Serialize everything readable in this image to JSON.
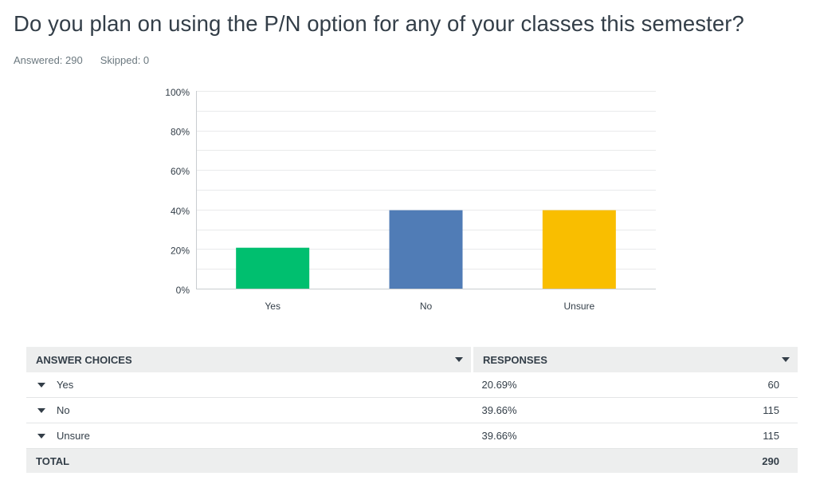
{
  "question": {
    "title": "Do you plan on using the P/N option for any of your classes this semester?",
    "answered_label": "Answered: 290",
    "skipped_label": "Skipped: 0"
  },
  "colors": {
    "yes": "#00bf6f",
    "no": "#507cb6",
    "unsure": "#f9be00",
    "grid": "#e9eaeb",
    "axis": "#c9cdd0"
  },
  "chart_data": {
    "type": "bar",
    "title": "",
    "xlabel": "",
    "ylabel": "",
    "categories": [
      "Yes",
      "No",
      "Unsure"
    ],
    "values": [
      20.69,
      39.66,
      39.66
    ],
    "ylim": [
      0,
      100
    ],
    "yticks": [
      "0%",
      "20%",
      "40%",
      "60%",
      "80%",
      "100%"
    ],
    "grid": true,
    "legend": "none"
  },
  "table": {
    "headers": {
      "answer_choices": "ANSWER CHOICES",
      "responses": "RESPONSES"
    },
    "rows": [
      {
        "choice": "Yes",
        "percent": "20.69%",
        "count": "60"
      },
      {
        "choice": "No",
        "percent": "39.66%",
        "count": "115"
      },
      {
        "choice": "Unsure",
        "percent": "39.66%",
        "count": "115"
      }
    ],
    "total": {
      "label": "TOTAL",
      "count": "290"
    }
  }
}
